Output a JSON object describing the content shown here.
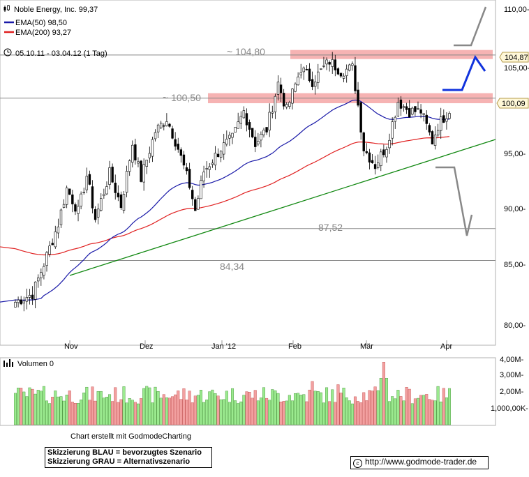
{
  "legend": {
    "ticker": "Noble Energy, Inc. 99,37",
    "ema50": "EMA(50) 98,50",
    "ema200": "EMA(200) 93,27",
    "period": "05.10.11 - 03.04.12 (1 Tag)",
    "volume": "Volumen 0"
  },
  "colors": {
    "ema50": "#1a1aa8",
    "ema200": "#e02020",
    "trend": "#118811",
    "zone": "#f6b3b3",
    "scenario_blue": "#1133dd",
    "scenario_grey": "#888888",
    "vol_up": "#9bea8f",
    "vol_down": "#f2a0a0"
  },
  "levels": {
    "resistance_high": "~ 104,80",
    "resistance_low": "~ 100,50",
    "support_1": "87,52",
    "support_2": "84,34"
  },
  "badges": {
    "zone_high": "104,87",
    "zone_low": "100,09"
  },
  "footer": {
    "credit": "Chart erstellt mit GodmodeCharting",
    "legend_blue": "Skizzierung BLAU = bevorzugtes Szenario",
    "legend_grey": "Skizzierung GRAU = Alternativszenario",
    "website": "http://www.godmode-trader.de",
    "copyright_icon": "copyright-icon"
  },
  "chart_data": {
    "type": "candlestick",
    "title": "Noble Energy, Inc. 99,37",
    "x_tick_labels": [
      "Nov",
      "Dez",
      "Jan '12",
      "Feb",
      "Mär",
      "Apr"
    ],
    "y_tick_labels": [
      "110,00-",
      "105,00-",
      "100,00-",
      "95,00-",
      "90,00-",
      "85,00-",
      "80,00-"
    ],
    "ylim": [
      78,
      111
    ],
    "volume_tick_labels": [
      "4,00M-",
      "3,00M-",
      "2,00M-",
      "1,000,00K-"
    ],
    "volume_ylim": [
      0,
      4000000
    ],
    "horizontal_levels": [
      104.8,
      100.5,
      87.52,
      84.34
    ],
    "zones": [
      [
        104.4,
        105.3
      ],
      [
        100.0,
        101.0
      ]
    ],
    "ema50_end": 98.5,
    "ema200_end": 93.27,
    "last_close": 99.37
  }
}
